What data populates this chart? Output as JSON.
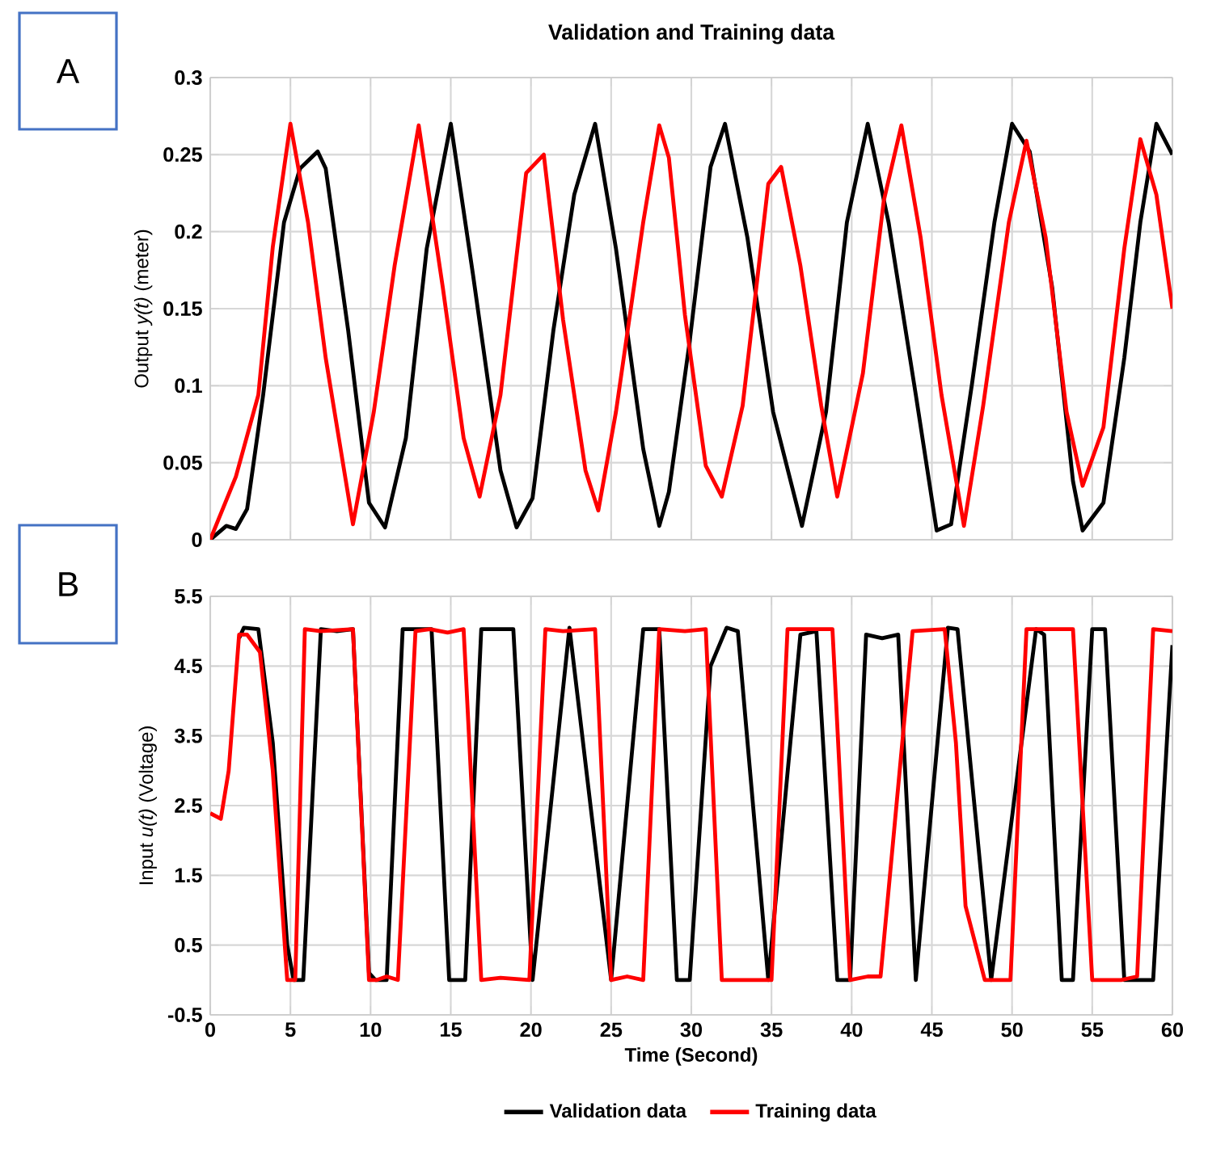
{
  "chart_data": [
    {
      "type": "line",
      "title": "Validation and Training data",
      "ylabel": "Output *y(t)* (meter)",
      "annotations": [
        "A"
      ],
      "xlim": [
        0,
        60
      ],
      "xticks": [
        0,
        5,
        10,
        15,
        20,
        25,
        30,
        35,
        40,
        45,
        50,
        55,
        60
      ],
      "ylim": [
        0,
        0.3
      ],
      "yticks": [
        0,
        0.05,
        0.1,
        0.15,
        0.2,
        0.25,
        0.3
      ],
      "tick_labels": "y",
      "grid": true,
      "series": [
        {
          "color": "#000000",
          "x": [
            0,
            1.0,
            1.6,
            2.3,
            3.3,
            4.6,
            5.6,
            6.7,
            7.2,
            8.6,
            9.9,
            10.9,
            12.2,
            13.5,
            15.0,
            16.4,
            18.1,
            19.1,
            20.1,
            21.4,
            22.7,
            24.0,
            25.3,
            27.0,
            28.0,
            28.6,
            29.9,
            31.2,
            32.1,
            33.5,
            35.1,
            36.9,
            38.4,
            39.7,
            41.0,
            42.3,
            44.0,
            45.3,
            46.2,
            47.5,
            48.9,
            50.0,
            51.1,
            52.5,
            53.8,
            54.4,
            55.7,
            57.0,
            58.0,
            59.0,
            60
          ],
          "values": [
            0,
            0.009,
            0.007,
            0.02,
            0.094,
            0.206,
            0.241,
            0.252,
            0.241,
            0.136,
            0.024,
            0.008,
            0.066,
            0.189,
            0.27,
            0.171,
            0.045,
            0.008,
            0.027,
            0.136,
            0.224,
            0.27,
            0.189,
            0.059,
            0.009,
            0.031,
            0.129,
            0.242,
            0.27,
            0.196,
            0.083,
            0.009,
            0.083,
            0.206,
            0.27,
            0.206,
            0.094,
            0.006,
            0.01,
            0.101,
            0.206,
            0.27,
            0.252,
            0.164,
            0.038,
            0.006,
            0.024,
            0.118,
            0.206,
            0.27,
            0.25
          ]
        },
        {
          "color": "#ff0000",
          "x": [
            0,
            1.6,
            3.0,
            3.9,
            5.0,
            6.1,
            7.2,
            8.9,
            10.2,
            11.5,
            13.0,
            14.5,
            15.8,
            16.8,
            18.1,
            19.7,
            20.8,
            22.0,
            23.4,
            24.2,
            25.3,
            27.0,
            28.0,
            28.6,
            29.6,
            30.9,
            31.9,
            33.2,
            34.8,
            35.6,
            36.8,
            38.1,
            39.1,
            40.7,
            42.0,
            43.1,
            44.3,
            45.6,
            47.0,
            48.2,
            49.8,
            50.9,
            52.1,
            53.4,
            54.4,
            55.7,
            57.0,
            58.0,
            59.0,
            60
          ],
          "values": [
            0,
            0.041,
            0.094,
            0.19,
            0.27,
            0.206,
            0.118,
            0.01,
            0.083,
            0.178,
            0.269,
            0.164,
            0.066,
            0.028,
            0.094,
            0.238,
            0.25,
            0.143,
            0.045,
            0.019,
            0.083,
            0.206,
            0.269,
            0.248,
            0.146,
            0.048,
            0.028,
            0.087,
            0.231,
            0.242,
            0.178,
            0.087,
            0.028,
            0.108,
            0.22,
            0.269,
            0.196,
            0.094,
            0.009,
            0.087,
            0.206,
            0.259,
            0.196,
            0.083,
            0.035,
            0.073,
            0.189,
            0.26,
            0.224,
            0.15
          ]
        }
      ]
    },
    {
      "type": "line",
      "xlabel": "Time (Second)",
      "ylabel": "Input *u(t)* (Voltage)",
      "annotations": [
        "B"
      ],
      "legend": "bottom",
      "xlim": [
        0,
        60
      ],
      "xticks": [
        0,
        5,
        10,
        15,
        20,
        25,
        30,
        35,
        40,
        45,
        50,
        55,
        60
      ],
      "ylim": [
        -0.5,
        5.5
      ],
      "yticks": [
        -0.5,
        0.5,
        1.5,
        2.5,
        3.5,
        4.5,
        5.5
      ],
      "grid": true,
      "series": [
        {
          "name": "Validation data",
          "color": "#000000",
          "x": [
            1.8,
            2.1,
            3.0,
            3.9,
            4.8,
            5.2,
            5.8,
            6.9,
            7.9,
            8.9,
            9.9,
            10.3,
            11.0,
            12.0,
            13.8,
            14.9,
            15.9,
            16.9,
            18.9,
            20.1,
            22.4,
            25.0,
            27.0,
            28.0,
            29.1,
            29.9,
            31.2,
            32.2,
            32.9,
            34.8,
            36.8,
            37.8,
            39.1,
            39.9,
            40.9,
            41.9,
            42.9,
            44.0,
            46.0,
            46.6,
            48.7,
            51.5,
            52.0,
            53.1,
            53.8,
            55.0,
            55.8,
            57.0,
            58.8,
            60
          ],
          "values": [
            4.9,
            5.05,
            5.03,
            3.4,
            0.5,
            0,
            0,
            5.03,
            5.0,
            5.03,
            0.1,
            0,
            0,
            5.03,
            5.03,
            0,
            0,
            5.03,
            5.03,
            0,
            5.05,
            0,
            5.03,
            5.03,
            0,
            0,
            4.5,
            5.05,
            5.0,
            0,
            4.95,
            5.0,
            0,
            0,
            4.95,
            4.9,
            4.95,
            0,
            5.05,
            5.03,
            0,
            5.03,
            4.95,
            0,
            0,
            5.03,
            5.03,
            0,
            0,
            4.8
          ]
        },
        {
          "name": "Training data",
          "color": "#ff0000",
          "x": [
            0,
            0.66,
            1.15,
            1.8,
            2.3,
            3.1,
            3.9,
            4.8,
            5.3,
            5.9,
            6.9,
            8.9,
            9.9,
            10.4,
            11.0,
            11.7,
            12.8,
            13.7,
            14.8,
            15.8,
            16.9,
            18.1,
            19.9,
            20.9,
            22.0,
            24.0,
            25.0,
            26.0,
            27.0,
            28.0,
            29.6,
            30.9,
            31.9,
            32.9,
            35.0,
            36.0,
            38.8,
            39.9,
            41.0,
            41.8,
            43.8,
            45.8,
            46.5,
            47.1,
            48.3,
            49.9,
            50.9,
            53.8,
            55.0,
            56.8,
            57.8,
            58.8,
            60
          ],
          "values": [
            2.39,
            2.31,
            3.0,
            4.95,
            4.95,
            4.7,
            3.0,
            0,
            0,
            5.03,
            5.0,
            5.03,
            0,
            0,
            0.05,
            0,
            5.0,
            5.03,
            4.98,
            5.03,
            0,
            0.03,
            0,
            5.03,
            5.0,
            5.03,
            0,
            0.05,
            0,
            5.03,
            5.0,
            5.03,
            0,
            0,
            0,
            5.03,
            5.03,
            0,
            0.05,
            0.05,
            5.0,
            5.03,
            3.4,
            1.06,
            0,
            0,
            5.03,
            5.03,
            0,
            0,
            0.05,
            5.03,
            5.0
          ]
        }
      ]
    }
  ]
}
